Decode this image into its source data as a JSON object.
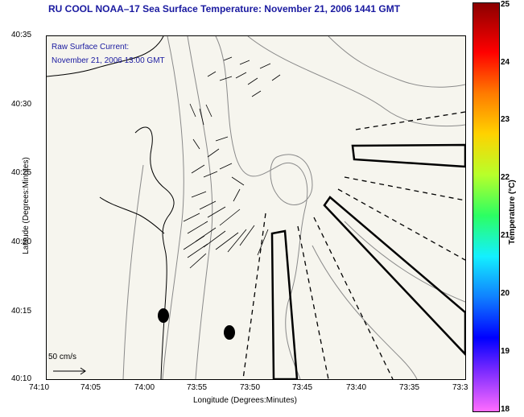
{
  "header": {
    "title": "RU COOL  NOAA–17  Sea Surface Temperature:  November 21, 2006 1441 GMT"
  },
  "legend": {
    "line1": "Raw Surface Current:",
    "line2": "November 21, 2006 13:00 GMT",
    "scale": "50 cm/s"
  },
  "axes": {
    "xlabel": "Longitude (Degrees:Minutes)",
    "ylabel": "Latitude (Degrees:Minutes)",
    "xticks": [
      "74:10",
      "74:05",
      "74:00",
      "73:55",
      "73:50",
      "73:45",
      "73:40",
      "73:35",
      "73:3"
    ],
    "yticks": [
      "40:35",
      "40:30",
      "40:25",
      "40:20",
      "40:15",
      "40:10"
    ]
  },
  "colorbar": {
    "label": "Temperature (°C)",
    "ticks": [
      "25",
      "24",
      "23",
      "22",
      "21",
      "20",
      "19",
      "18"
    ],
    "range": [
      18,
      25
    ],
    "colors": [
      "#8b0000",
      "#ff0000",
      "#ff7a00",
      "#ffd200",
      "#b8ff2a",
      "#2cff62",
      "#13f0ff",
      "#1080ff",
      "#0000ff",
      "#7a2aff",
      "#ff6cff"
    ]
  }
}
